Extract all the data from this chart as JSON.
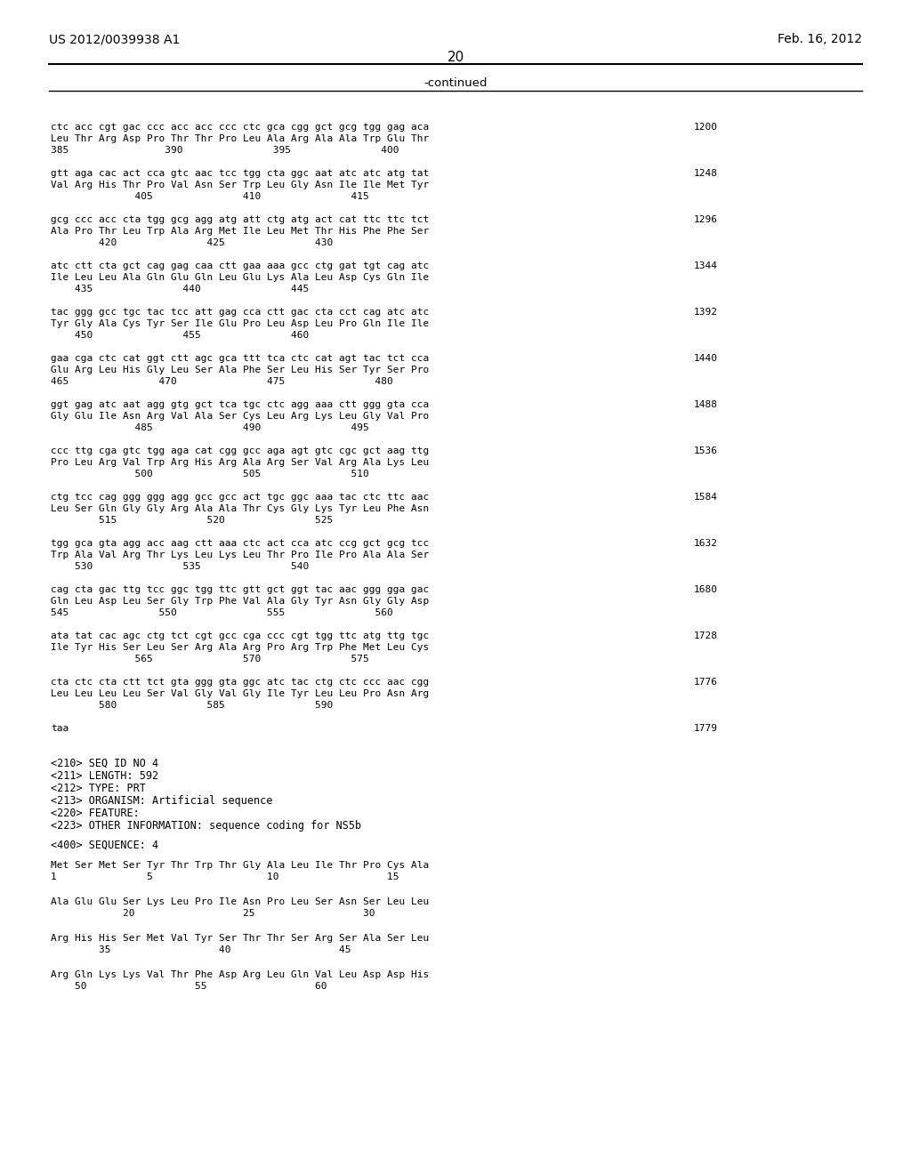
{
  "header_left": "US 2012/0039938 A1",
  "header_right": "Feb. 16, 2012",
  "page_number": "20",
  "continued_label": "-continued",
  "background_color": "#ffffff",
  "text_color": "#000000",
  "lines": [
    {
      "y": 0,
      "type": "sequence",
      "num": "1200",
      "line1": "ctc acc cgt gac ccc acc acc ccc ctc gca cgg gct gcg tgg gag aca",
      "line2": "Leu Thr Arg Asp Pro Thr Thr Pro Leu Ala Arg Ala Ala Trp Glu Thr",
      "line3": "385                390               395               400"
    },
    {
      "y": 1,
      "type": "sequence",
      "num": "1248",
      "line1": "gtt aga cac act cca gtc aac tcc tgg cta ggc aat atc atc atg tat",
      "line2": "Val Arg His Thr Pro Val Asn Ser Trp Leu Gly Asn Ile Ile Met Tyr",
      "line3": "              405               410               415"
    },
    {
      "y": 2,
      "type": "sequence",
      "num": "1296",
      "line1": "gcg ccc acc cta tgg gcg agg atg att ctg atg act cat ttc ttc tct",
      "line2": "Ala Pro Thr Leu Trp Ala Arg Met Ile Leu Met Thr His Phe Phe Ser",
      "line3": "        420               425               430"
    },
    {
      "y": 3,
      "type": "sequence",
      "num": "1344",
      "line1": "atc ctt cta gct cag gag caa ctt gaa aaa gcc ctg gat tgt cag atc",
      "line2": "Ile Leu Leu Ala Gln Glu Gln Leu Glu Lys Ala Leu Asp Cys Gln Ile",
      "line3": "    435               440               445"
    },
    {
      "y": 4,
      "type": "sequence",
      "num": "1392",
      "line1": "tac ggg gcc tgc tac tcc att gag cca ctt gac cta cct cag atc atc",
      "line2": "Tyr Gly Ala Cys Tyr Ser Ile Glu Pro Leu Asp Leu Pro Gln Ile Ile",
      "line3": "    450               455               460"
    },
    {
      "y": 5,
      "type": "sequence",
      "num": "1440",
      "line1": "gaa cga ctc cat ggt ctt agc gca ttt tca ctc cat agt tac tct cca",
      "line2": "Glu Arg Leu His Gly Leu Ser Ala Phe Ser Leu His Ser Tyr Ser Pro",
      "line3": "465               470               475               480"
    },
    {
      "y": 6,
      "type": "sequence",
      "num": "1488",
      "line1": "ggt gag atc aat agg gtg gct tca tgc ctc agg aaa ctt ggg gta cca",
      "line2": "Gly Glu Ile Asn Arg Val Ala Ser Cys Leu Arg Lys Leu Gly Val Pro",
      "line3": "              485               490               495"
    },
    {
      "y": 7,
      "type": "sequence",
      "num": "1536",
      "line1": "ccc ttg cga gtc tgg aga cat cgg gcc aga agt gtc cgc gct aag ttg",
      "line2": "Pro Leu Arg Val Trp Arg His Arg Ala Arg Ser Val Arg Ala Lys Leu",
      "line3": "              500               505               510"
    },
    {
      "y": 8,
      "type": "sequence",
      "num": "1584",
      "line1": "ctg tcc cag ggg ggg agg gcc gcc act tgc ggc aaa tac ctc ttc aac",
      "line2": "Leu Ser Gln Gly Gly Arg Ala Ala Thr Cys Gly Lys Tyr Leu Phe Asn",
      "line3": "        515               520               525"
    },
    {
      "y": 9,
      "type": "sequence",
      "num": "1632",
      "line1": "tgg gca gta agg acc aag ctt aaa ctc act cca atc ccg gct gcg tcc",
      "line2": "Trp Ala Val Arg Thr Lys Leu Lys Leu Thr Pro Ile Pro Ala Ala Ser",
      "line3": "    530               535               540"
    },
    {
      "y": 10,
      "type": "sequence",
      "num": "1680",
      "line1": "cag cta gac ttg tcc ggc tgg ttc gtt gct ggt tac aac ggg gga gac",
      "line2": "Gln Leu Asp Leu Ser Gly Trp Phe Val Ala Gly Tyr Asn Gly Gly Asp",
      "line3": "545               550               555               560"
    },
    {
      "y": 11,
      "type": "sequence",
      "num": "1728",
      "line1": "ata tat cac agc ctg tct cgt gcc cga ccc cgt tgg ttc atg ttg tgc",
      "line2": "Ile Tyr His Ser Leu Ser Arg Ala Arg Pro Arg Trp Phe Met Leu Cys",
      "line3": "              565               570               575"
    },
    {
      "y": 12,
      "type": "sequence",
      "num": "1776",
      "line1": "cta ctc cta ctt tct gta ggg gta ggc atc tac ctg ctc ccc aac cgg",
      "line2": "Leu Leu Leu Leu Ser Val Gly Val Gly Ile Tyr Leu Leu Pro Asn Arg",
      "line3": "        580               585               590"
    },
    {
      "y": 13,
      "type": "stop",
      "num": "1779",
      "line1": "taa",
      "line2": "",
      "line3": ""
    },
    {
      "y": 14,
      "type": "meta",
      "line1": "<210> SEQ ID NO 4",
      "line2": "<211> LENGTH: 592",
      "line3": "<212> TYPE: PRT"
    },
    {
      "y": 15,
      "type": "meta",
      "line1": "<213> ORGANISM: Artificial sequence",
      "line2": "<220> FEATURE:",
      "line3": "<223> OTHER INFORMATION: sequence coding for NS5b"
    },
    {
      "y": 16,
      "type": "meta",
      "line1": "<400> SEQUENCE: 4",
      "line2": "",
      "line3": ""
    },
    {
      "y": 17,
      "type": "aa_sequence",
      "num": "",
      "line1": "Met Ser Met Ser Tyr Thr Trp Thr Gly Ala Leu Ile Thr Pro Cys Ala",
      "line2": "1               5                   10                  15",
      "line3": ""
    },
    {
      "y": 18,
      "type": "aa_sequence",
      "num": "",
      "line1": "Ala Glu Glu Ser Lys Leu Pro Ile Asn Pro Leu Ser Asn Ser Leu Leu",
      "line2": "            20                  25                  30",
      "line3": ""
    },
    {
      "y": 19,
      "type": "aa_sequence",
      "num": "",
      "line1": "Arg His His Ser Met Val Tyr Ser Thr Thr Ser Arg Ser Ala Ser Leu",
      "line2": "        35                  40                  45",
      "line3": ""
    },
    {
      "y": 20,
      "type": "aa_sequence",
      "num": "",
      "line1": "Arg Gln Lys Lys Val Thr Phe Asp Arg Leu Gln Val Leu Asp Asp His",
      "line2": "    50                  55                  60",
      "line3": ""
    }
  ]
}
